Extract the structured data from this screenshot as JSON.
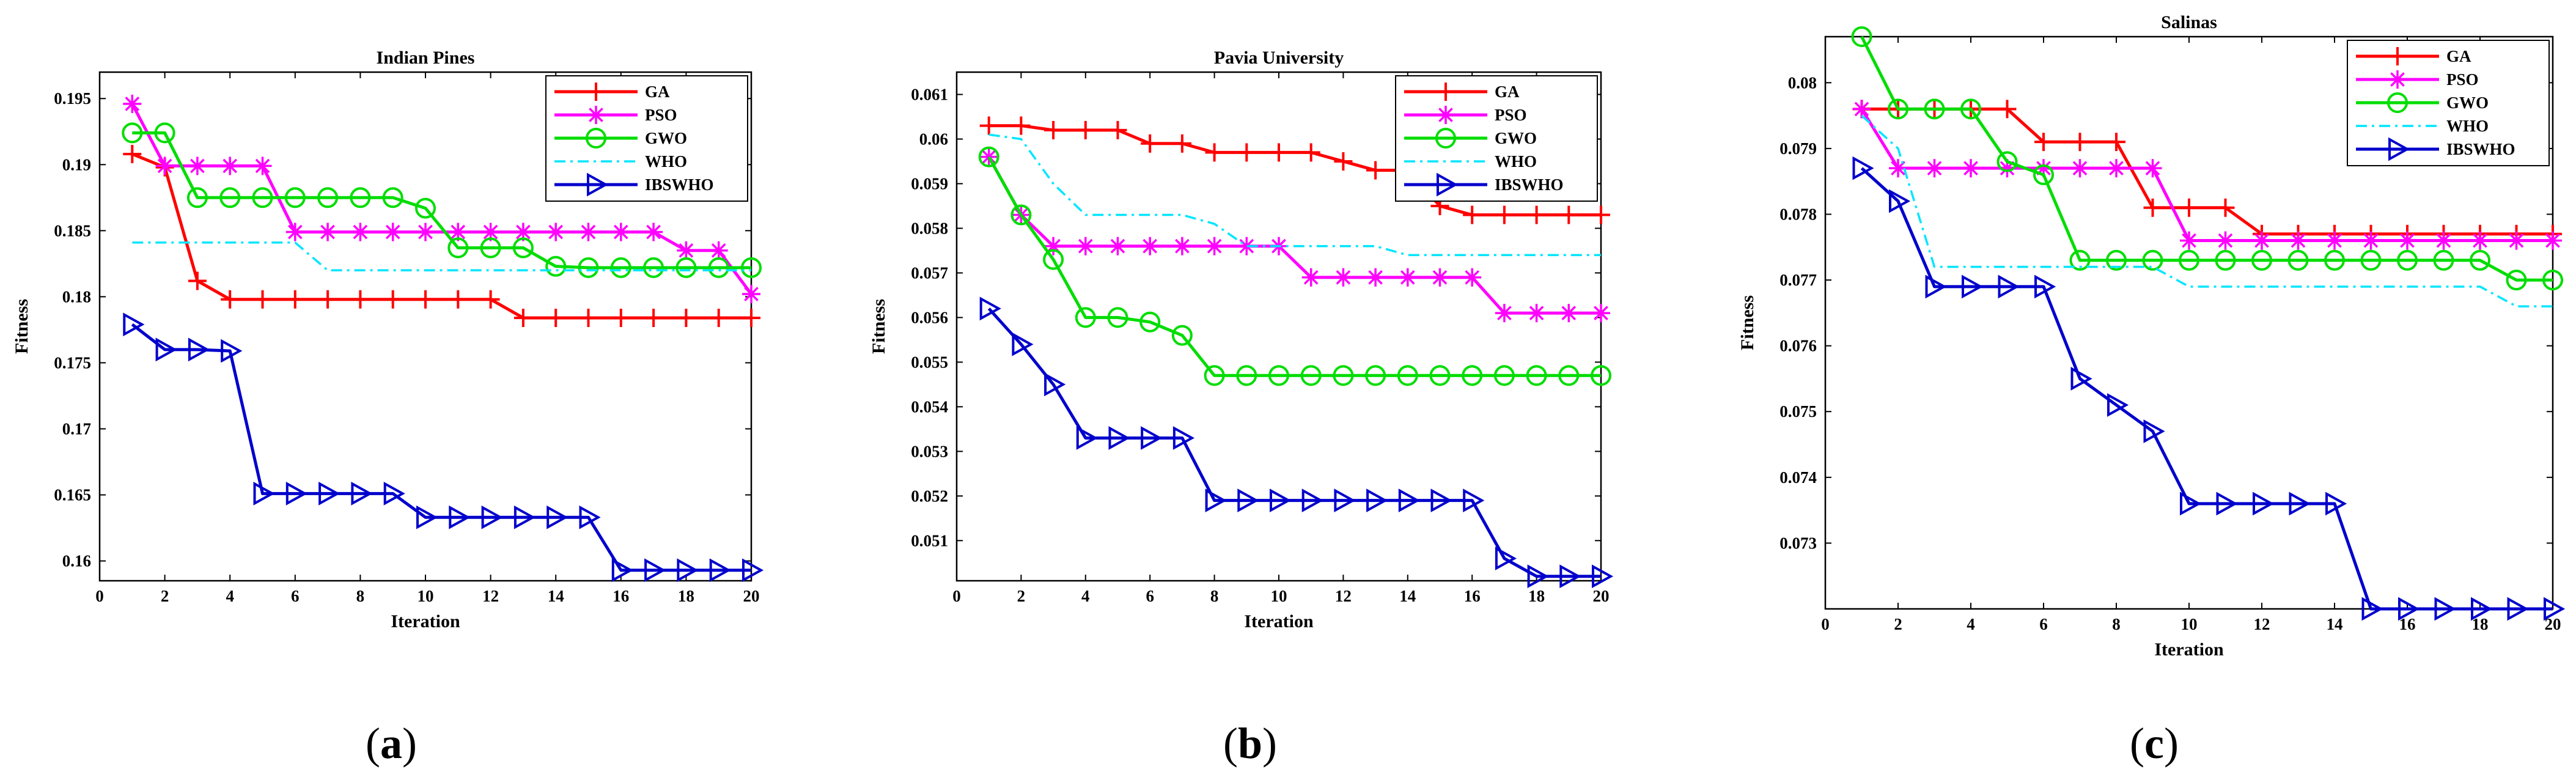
{
  "chart_data": [
    {
      "type": "line",
      "title": "Indian Pines",
      "xlabel": "Iteration",
      "ylabel": "Fitness",
      "xlim": [
        0,
        20
      ],
      "ylim": [
        0.1585,
        0.197
      ],
      "xticks": [
        0,
        2,
        4,
        6,
        8,
        10,
        12,
        14,
        16,
        18,
        20
      ],
      "yticks": [
        0.16,
        0.165,
        0.17,
        0.175,
        0.18,
        0.185,
        0.19,
        0.195
      ],
      "ytick_labels": [
        "0.16",
        "0.165",
        "0.17",
        "0.175",
        "0.18",
        "0.185",
        "0.19",
        "0.195"
      ],
      "legend_position": "top-right",
      "caption_letter": "a",
      "x": [
        1,
        2,
        3,
        4,
        5,
        6,
        7,
        8,
        9,
        10,
        11,
        12,
        13,
        14,
        15,
        16,
        17,
        18,
        19,
        20
      ],
      "series": [
        {
          "name": "GA",
          "values": [
            0.1908,
            0.1898,
            0.1812,
            0.1798,
            0.1798,
            0.1798,
            0.1798,
            0.1798,
            0.1798,
            0.1798,
            0.1798,
            0.1798,
            0.1784,
            0.1784,
            0.1784,
            0.1784,
            0.1784,
            0.1784,
            0.1784,
            0.1784
          ]
        },
        {
          "name": "PSO",
          "values": [
            0.1946,
            0.1899,
            0.1899,
            0.1899,
            0.1899,
            0.1849,
            0.1849,
            0.1849,
            0.1849,
            0.1849,
            0.1849,
            0.1849,
            0.1849,
            0.1849,
            0.1849,
            0.1849,
            0.1849,
            0.1835,
            0.1835,
            0.1802
          ]
        },
        {
          "name": "GWO",
          "values": [
            0.1924,
            0.1924,
            0.1875,
            0.1875,
            0.1875,
            0.1875,
            0.1875,
            0.1875,
            0.1875,
            0.1867,
            0.1837,
            0.1837,
            0.1837,
            0.1823,
            0.1822,
            0.1822,
            0.1822,
            0.1822,
            0.1822,
            0.1822
          ]
        },
        {
          "name": "WHO",
          "values": [
            0.1841,
            0.1841,
            0.1841,
            0.1841,
            0.1841,
            0.1841,
            0.182,
            0.182,
            0.182,
            0.182,
            0.182,
            0.182,
            0.182,
            0.182,
            0.182,
            0.182,
            0.182,
            0.182,
            0.182,
            0.182
          ]
        },
        {
          "name": "IBSWHO",
          "values": [
            0.1779,
            0.176,
            0.176,
            0.1759,
            0.1651,
            0.1651,
            0.1651,
            0.1651,
            0.1651,
            0.1633,
            0.1633,
            0.1633,
            0.1633,
            0.1633,
            0.1633,
            0.1593,
            0.1593,
            0.1593,
            0.1593,
            0.1593
          ]
        }
      ]
    },
    {
      "type": "line",
      "title": "Pavia University",
      "xlabel": "Iteration",
      "ylabel": "Fitness",
      "xlim": [
        0,
        20
      ],
      "ylim": [
        0.0501,
        0.0615
      ],
      "xticks": [
        0,
        2,
        4,
        6,
        8,
        10,
        12,
        14,
        16,
        18,
        20
      ],
      "yticks": [
        0.051,
        0.052,
        0.053,
        0.054,
        0.055,
        0.056,
        0.057,
        0.058,
        0.059,
        0.06,
        0.061
      ],
      "ytick_labels": [
        "0.051",
        "0.052",
        "0.053",
        "0.054",
        "0.055",
        "0.056",
        "0.057",
        "0.058",
        "0.059",
        "0.06",
        "0.061"
      ],
      "legend_position": "top-right",
      "caption_letter": "b",
      "x": [
        1,
        2,
        3,
        4,
        5,
        6,
        7,
        8,
        9,
        10,
        11,
        12,
        13,
        14,
        15,
        16,
        17,
        18,
        19,
        20
      ],
      "series": [
        {
          "name": "GA",
          "values": [
            0.0603,
            0.0603,
            0.0602,
            0.0602,
            0.0602,
            0.0599,
            0.0599,
            0.0597,
            0.0597,
            0.0597,
            0.0597,
            0.0595,
            0.0593,
            0.0593,
            0.0585,
            0.0583,
            0.0583,
            0.0583,
            0.0583,
            0.0583
          ]
        },
        {
          "name": "PSO",
          "values": [
            0.0596,
            0.0583,
            0.0576,
            0.0576,
            0.0576,
            0.0576,
            0.0576,
            0.0576,
            0.0576,
            0.0576,
            0.0569,
            0.0569,
            0.0569,
            0.0569,
            0.0569,
            0.0569,
            0.0561,
            0.0561,
            0.0561,
            0.0561
          ]
        },
        {
          "name": "GWO",
          "values": [
            0.0596,
            0.0583,
            0.0573,
            0.056,
            0.056,
            0.0559,
            0.0556,
            0.0547,
            0.0547,
            0.0547,
            0.0547,
            0.0547,
            0.0547,
            0.0547,
            0.0547,
            0.0547,
            0.0547,
            0.0547,
            0.0547,
            0.0547
          ]
        },
        {
          "name": "WHO",
          "values": [
            0.0601,
            0.06,
            0.059,
            0.0583,
            0.0583,
            0.0583,
            0.0583,
            0.0581,
            0.0576,
            0.0576,
            0.0576,
            0.0576,
            0.0576,
            0.0574,
            0.0574,
            0.0574,
            0.0574,
            0.0574,
            0.0574,
            0.0574
          ]
        },
        {
          "name": "IBSWHO",
          "values": [
            0.0562,
            0.0554,
            0.0545,
            0.0533,
            0.0533,
            0.0533,
            0.0533,
            0.0519,
            0.0519,
            0.0519,
            0.0519,
            0.0519,
            0.0519,
            0.0519,
            0.0519,
            0.0519,
            0.0506,
            0.0502,
            0.0502,
            0.0502
          ]
        }
      ]
    },
    {
      "type": "line",
      "title": "Salinas",
      "xlabel": "Iteration",
      "ylabel": "Fitness",
      "xlim": [
        0,
        20
      ],
      "ylim": [
        0.072,
        0.0807
      ],
      "xticks": [
        0,
        2,
        4,
        6,
        8,
        10,
        12,
        14,
        16,
        18,
        20
      ],
      "yticks": [
        0.073,
        0.074,
        0.075,
        0.076,
        0.077,
        0.078,
        0.079,
        0.08
      ],
      "ytick_labels": [
        "0.073",
        "0.074",
        "0.075",
        "0.076",
        "0.077",
        "0.078",
        "0.079",
        "0.08"
      ],
      "legend_position": "top-right",
      "caption_letter": "c",
      "x": [
        1,
        2,
        3,
        4,
        5,
        6,
        7,
        8,
        9,
        10,
        11,
        12,
        13,
        14,
        15,
        16,
        17,
        18,
        19,
        20
      ],
      "series": [
        {
          "name": "GA",
          "values": [
            0.0796,
            0.0796,
            0.0796,
            0.0796,
            0.0796,
            0.0791,
            0.0791,
            0.0791,
            0.0781,
            0.0781,
            0.0781,
            0.0777,
            0.0777,
            0.0777,
            0.0777,
            0.0777,
            0.0777,
            0.0777,
            0.0777,
            0.0777
          ]
        },
        {
          "name": "PSO",
          "values": [
            0.0796,
            0.0787,
            0.0787,
            0.0787,
            0.0787,
            0.0787,
            0.0787,
            0.0787,
            0.0787,
            0.0776,
            0.0776,
            0.0776,
            0.0776,
            0.0776,
            0.0776,
            0.0776,
            0.0776,
            0.0776,
            0.0776,
            0.0776
          ]
        },
        {
          "name": "GWO",
          "values": [
            0.0807,
            0.0796,
            0.0796,
            0.0796,
            0.0788,
            0.0786,
            0.0773,
            0.0773,
            0.0773,
            0.0773,
            0.0773,
            0.0773,
            0.0773,
            0.0773,
            0.0773,
            0.0773,
            0.0773,
            0.0773,
            0.077,
            0.077
          ]
        },
        {
          "name": "WHO",
          "values": [
            0.0795,
            0.079,
            0.0772,
            0.0772,
            0.0772,
            0.0772,
            0.0772,
            0.0772,
            0.0772,
            0.0769,
            0.0769,
            0.0769,
            0.0769,
            0.0769,
            0.0769,
            0.0769,
            0.0769,
            0.0769,
            0.0766,
            0.0766
          ]
        },
        {
          "name": "IBSWHO",
          "values": [
            0.0787,
            0.0782,
            0.0769,
            0.0769,
            0.0769,
            0.0769,
            0.0755,
            0.0751,
            0.0747,
            0.0736,
            0.0736,
            0.0736,
            0.0736,
            0.0736,
            0.072,
            0.072,
            0.072,
            0.072,
            0.072,
            0.072
          ]
        }
      ]
    }
  ],
  "series_colors": {
    "GA": "#ff0000",
    "PSO": "#ff00ff",
    "GWO": "#00dd00",
    "WHO": "#00e5ff",
    "IBSWHO": "#0000cc"
  },
  "series_markers": {
    "GA": "plus",
    "PSO": "asterisk",
    "GWO": "circle",
    "WHO": "none",
    "IBSWHO": "triangle-right"
  },
  "series_dash": {
    "GA": "solid",
    "PSO": "solid",
    "GWO": "solid",
    "WHO": "dashdot",
    "IBSWHO": "solid"
  }
}
